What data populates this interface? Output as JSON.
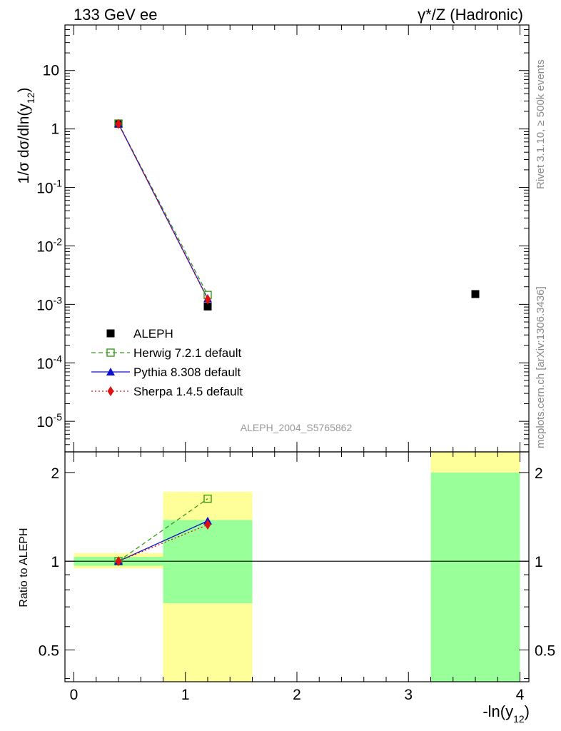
{
  "header": {
    "left": "133 GeV ee",
    "right": "γ*/Z (Hadronic)"
  },
  "side_notes": {
    "rivet": "Rivet 3.1.10, ≥ 500k events",
    "mcplots": "mcplots.cern.ch [arXiv:1306.3436]"
  },
  "watermark": "ALEPH_2004_S5765862",
  "chart_data": [
    {
      "type": "scatter",
      "panel": "main",
      "title": "133 GeV ee",
      "ylabel": "1/σ dσ/dln(y12)",
      "xlabel": "-ln(y12)",
      "yscale": "log",
      "xlim": [
        -0.08,
        4.08
      ],
      "ylim": [
        3e-06,
        60
      ],
      "y_tick_labels": [
        "10",
        "1",
        "10^-1",
        "10^-2",
        "10^-3",
        "10^-4",
        "10^-5"
      ],
      "y_ticks": [
        10,
        1,
        0.1,
        0.01,
        0.001,
        0.0001,
        1e-05
      ],
      "legend_position": "lower-left",
      "series": [
        {
          "name": "ALEPH",
          "marker": "square-filled",
          "color": "#000000",
          "x": [
            0.4,
            1.2,
            3.6
          ],
          "y": [
            1.22,
            0.00092,
            0.0015
          ]
        },
        {
          "name": "Herwig 7.2.1 default",
          "marker": "square-open",
          "line": "dashed",
          "color": "#3a9a1c",
          "x": [
            0.4,
            1.2
          ],
          "y": [
            1.24,
            0.00145
          ]
        },
        {
          "name": "Pythia 8.308 default",
          "marker": "triangle",
          "line": "solid",
          "color": "#1010cc",
          "x": [
            0.4,
            1.2
          ],
          "y": [
            1.23,
            0.00125
          ]
        },
        {
          "name": "Sherpa 1.4.5 default",
          "marker": "diamond",
          "line": "dotted",
          "color": "#e01010",
          "x": [
            0.4,
            1.2
          ],
          "y": [
            1.22,
            0.00122
          ]
        }
      ]
    },
    {
      "type": "scatter",
      "panel": "ratio",
      "ylabel": "Ratio to ALEPH",
      "xlabel": "-ln(y12)",
      "yscale": "log",
      "xlim": [
        -0.08,
        4.08
      ],
      "ylim": [
        0.39,
        2.35
      ],
      "x_ticks": [
        0,
        1,
        2,
        3,
        4
      ],
      "x_tick_labels": [
        "0",
        "1",
        "2",
        "3",
        "4"
      ],
      "y_ticks": [
        0.5,
        1,
        2
      ],
      "y_tick_labels": [
        "0.5",
        "1",
        "2"
      ],
      "bands": [
        {
          "x0": 0.0,
          "x1": 0.8,
          "yellow": [
            0.945,
            1.065
          ],
          "green": [
            0.965,
            1.035
          ]
        },
        {
          "x0": 0.8,
          "x1": 1.6,
          "yellow": [
            0.39,
            1.72
          ],
          "green": [
            0.72,
            1.38
          ]
        },
        {
          "x0": 3.2,
          "x1": 4.0,
          "yellow": [
            0.39,
            2.35
          ],
          "green": [
            0.39,
            2.0
          ]
        }
      ],
      "series": [
        {
          "name": "Herwig 7.2.1 default",
          "marker": "square-open",
          "line": "dashed",
          "color": "#3a9a1c",
          "x": [
            0.4,
            1.2
          ],
          "y": [
            1.0,
            1.63
          ]
        },
        {
          "name": "Pythia 8.308 default",
          "marker": "triangle",
          "line": "solid",
          "color": "#1010cc",
          "x": [
            0.4,
            1.2
          ],
          "y": [
            1.0,
            1.37
          ]
        },
        {
          "name": "Sherpa 1.4.5 default",
          "marker": "diamond",
          "line": "dotted",
          "color": "#e01010",
          "x": [
            0.4,
            1.2
          ],
          "y": [
            1.0,
            1.33
          ]
        }
      ]
    }
  ]
}
